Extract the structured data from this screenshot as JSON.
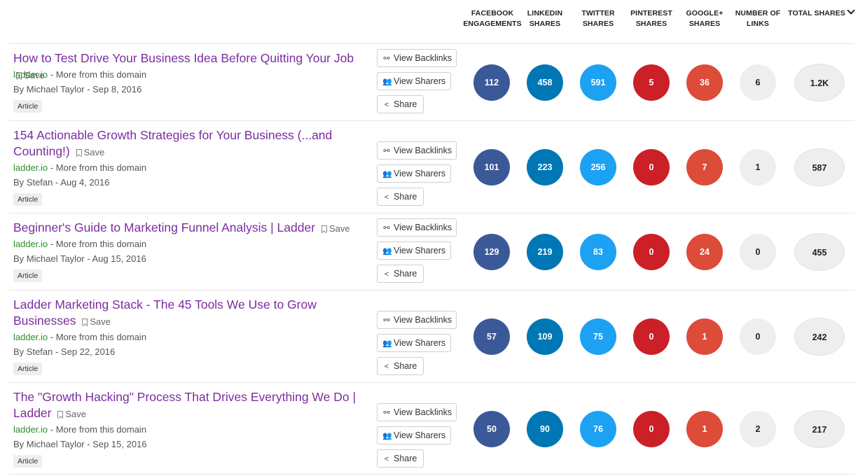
{
  "columns": [
    {
      "l1": "FACEBOOK",
      "l2": "ENGAGEMENTS"
    },
    {
      "l1": "LINKEDIN",
      "l2": "SHARES"
    },
    {
      "l1": "TWITTER",
      "l2": "SHARES"
    },
    {
      "l1": "PINTEREST",
      "l2": "SHARES"
    },
    {
      "l1": "GOOGLE+",
      "l2": "SHARES"
    },
    {
      "l1": "NUMBER OF",
      "l2": "LINKS"
    },
    {
      "l1": "TOTAL SHARES",
      "l2": ""
    }
  ],
  "labels": {
    "save": "Save",
    "more": "- More from this domain",
    "view_backlinks": "View Backlinks",
    "view_sharers": "View Sharers",
    "share": "Share"
  },
  "colors": {
    "facebook": "#3b5998",
    "linkedin": "#0077b5",
    "twitter": "#1da1f2",
    "pinterest": "#cb2027",
    "googleplus": "#dd4b39",
    "neutral": "#eeeeee",
    "title": "#7b2da0",
    "domain": "#2e8b2e"
  },
  "rows": [
    {
      "title": "How to Test Drive Your Business Idea Before Quitting Your Job",
      "domain": "ladder.io",
      "byline": "By Michael Taylor - Sep 8, 2016",
      "badge": "Article",
      "facebook": "112",
      "linkedin": "458",
      "twitter": "591",
      "pinterest": "5",
      "googleplus": "36",
      "links": "6",
      "total": "1.2K"
    },
    {
      "title": "154 Actionable Growth Strategies for Your Business (...and Counting!)",
      "domain": "ladder.io",
      "byline": "By Stefan - Aug 4, 2016",
      "badge": "Article",
      "facebook": "101",
      "linkedin": "223",
      "twitter": "256",
      "pinterest": "0",
      "googleplus": "7",
      "links": "1",
      "total": "587"
    },
    {
      "title": "Beginner's Guide to Marketing Funnel Analysis | Ladder",
      "domain": "ladder.io",
      "byline": "By Michael Taylor - Aug 15, 2016",
      "badge": "Article",
      "facebook": "129",
      "linkedin": "219",
      "twitter": "83",
      "pinterest": "0",
      "googleplus": "24",
      "links": "0",
      "total": "455"
    },
    {
      "title": "Ladder Marketing Stack - The 45 Tools We Use to Grow Businesses",
      "domain": "ladder.io",
      "byline": "By Stefan - Sep 22, 2016",
      "badge": "Article",
      "facebook": "57",
      "linkedin": "109",
      "twitter": "75",
      "pinterest": "0",
      "googleplus": "1",
      "links": "0",
      "total": "242"
    },
    {
      "title": "The \"Growth Hacking\" Process That Drives Everything We Do | Ladder",
      "domain": "ladder.io",
      "byline": "By Michael Taylor - Sep 15, 2016",
      "badge": "Article",
      "facebook": "50",
      "linkedin": "90",
      "twitter": "76",
      "pinterest": "0",
      "googleplus": "1",
      "links": "2",
      "total": "217"
    }
  ]
}
